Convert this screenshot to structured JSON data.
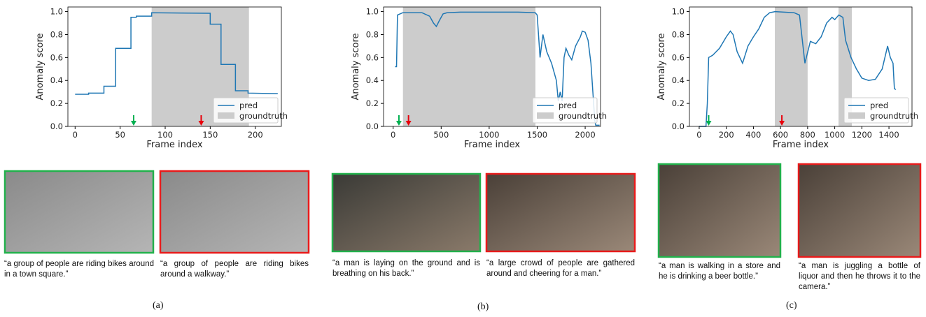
{
  "chart_data": [
    {
      "type": "line",
      "x_label": "Frame index",
      "y_label": "Anomaly score",
      "xlim": [
        -8,
        229
      ],
      "ylim": [
        0,
        1.04
      ],
      "xticks": [
        0,
        50,
        100,
        150,
        200
      ],
      "yticks": [
        {
          "value": 0,
          "label": "0.0"
        },
        0.2,
        0.4,
        0.6,
        0.8,
        {
          "value": 1,
          "label": "1.0"
        }
      ],
      "series": [
        {
          "name": "pred",
          "color": "#1f77b4",
          "x": [
            0,
            15,
            15,
            32,
            32,
            45,
            45,
            52,
            52,
            62,
            62,
            68,
            68,
            85,
            85,
            150,
            150,
            162,
            162,
            178,
            178,
            192,
            192,
            225
          ],
          "values": [
            0.28,
            0.28,
            0.29,
            0.29,
            0.35,
            0.35,
            0.68,
            0.68,
            0.68,
            0.68,
            0.95,
            0.95,
            0.96,
            0.96,
            0.99,
            0.985,
            0.89,
            0.89,
            0.54,
            0.54,
            0.31,
            0.31,
            0.29,
            0.285
          ]
        }
      ],
      "groundtruth": {
        "name": "groundtruth",
        "color": "#cccccc",
        "spans": [
          [
            85,
            193
          ]
        ]
      },
      "legend": "lower right",
      "markers": [
        {
          "x": 65,
          "color": "#00b050"
        },
        {
          "x": 140,
          "color": "#e8000b"
        }
      ]
    },
    {
      "type": "line",
      "x_label": "Frame index",
      "y_label": "Anomaly score",
      "xlim": [
        -100,
        2160
      ],
      "ylim": [
        0,
        1.04
      ],
      "xticks": [
        0,
        500,
        1000,
        1500,
        2000
      ],
      "yticks": [
        {
          "value": 0,
          "label": "0.0"
        },
        0.2,
        0.4,
        0.6,
        0.8,
        {
          "value": 1,
          "label": "1.0"
        }
      ],
      "series": [
        {
          "name": "pred",
          "color": "#1f77b4",
          "x": [
            20,
            35,
            45,
            100,
            200,
            300,
            380,
            420,
            450,
            480,
            520,
            560,
            700,
            1000,
            1300,
            1480,
            1500,
            1530,
            1560,
            1600,
            1650,
            1700,
            1720,
            1740,
            1760,
            1780,
            1800,
            1830,
            1860,
            1900,
            1950,
            1970,
            2000,
            2030,
            2060,
            2080,
            2100,
            2110,
            2150
          ],
          "values": [
            0.52,
            0.52,
            0.97,
            0.99,
            0.99,
            0.99,
            0.96,
            0.9,
            0.87,
            0.92,
            0.98,
            0.99,
            0.995,
            0.995,
            0.995,
            0.99,
            0.97,
            0.6,
            0.8,
            0.65,
            0.55,
            0.4,
            0.22,
            0.3,
            0.22,
            0.6,
            0.68,
            0.62,
            0.58,
            0.7,
            0.78,
            0.83,
            0.82,
            0.75,
            0.55,
            0.3,
            0.05,
            0.01,
            0.01
          ]
        }
      ],
      "groundtruth": {
        "name": "groundtruth",
        "color": "#cccccc",
        "spans": [
          [
            102,
            1482
          ]
        ]
      },
      "legend": "lower right",
      "markers": [
        {
          "x": 60,
          "color": "#00b050"
        },
        {
          "x": 160,
          "color": "#e8000b"
        }
      ]
    },
    {
      "type": "line",
      "x_label": "Frame index",
      "y_label": "Anomaly score",
      "xlim": [
        -72,
        1570
      ],
      "ylim": [
        0,
        1.04
      ],
      "xticks": [
        0,
        200,
        400,
        600,
        800,
        1000,
        1200,
        1400
      ],
      "yticks": [
        {
          "value": 0,
          "label": "0.0"
        },
        0.2,
        0.4,
        0.6,
        0.8,
        {
          "value": 1,
          "label": "1.0"
        }
      ],
      "series": [
        {
          "name": "pred",
          "color": "#1f77b4",
          "x": [
            0,
            50,
            60,
            70,
            100,
            150,
            200,
            230,
            250,
            280,
            320,
            360,
            400,
            440,
            480,
            520,
            560,
            700,
            740,
            780,
            820,
            860,
            900,
            940,
            980,
            1000,
            1030,
            1060,
            1080,
            1120,
            1160,
            1200,
            1250,
            1300,
            1350,
            1390,
            1410,
            1430,
            1440,
            1450
          ],
          "values": [
            0,
            0,
            0.2,
            0.6,
            0.62,
            0.68,
            0.78,
            0.83,
            0.8,
            0.65,
            0.55,
            0.7,
            0.78,
            0.85,
            0.95,
            0.99,
            1.0,
            0.99,
            0.97,
            0.55,
            0.74,
            0.72,
            0.78,
            0.9,
            0.95,
            0.93,
            0.97,
            0.95,
            0.75,
            0.6,
            0.5,
            0.42,
            0.4,
            0.41,
            0.5,
            0.7,
            0.6,
            0.55,
            0.33,
            0.32
          ]
        }
      ],
      "groundtruth": {
        "name": "groundtruth",
        "color": "#cccccc",
        "spans": [
          [
            558,
            800
          ],
          [
            1028,
            1126
          ]
        ]
      },
      "legend": "lower right",
      "markers": [
        {
          "x": 70,
          "color": "#00b050"
        },
        {
          "x": 610,
          "color": "#e8000b"
        }
      ]
    }
  ],
  "panels": [
    {
      "label": "(a)",
      "captions": [
        "“a group of people are riding bikes around in a town square.”",
        "“a group of people are riding bikes around a walkway.”"
      ]
    },
    {
      "label": "(b)",
      "captions": [
        "“a man is laying on the ground and is breathing on his back.”",
        "“a large crowd of people are gathered around and cheering for a man.”"
      ]
    },
    {
      "label": "(c)",
      "captions": [
        "“a man is walking in a store and he is drinking a beer bottle.”",
        "“a man is juggling a bottle of liquor and then he throws it to the camera.”"
      ]
    }
  ]
}
